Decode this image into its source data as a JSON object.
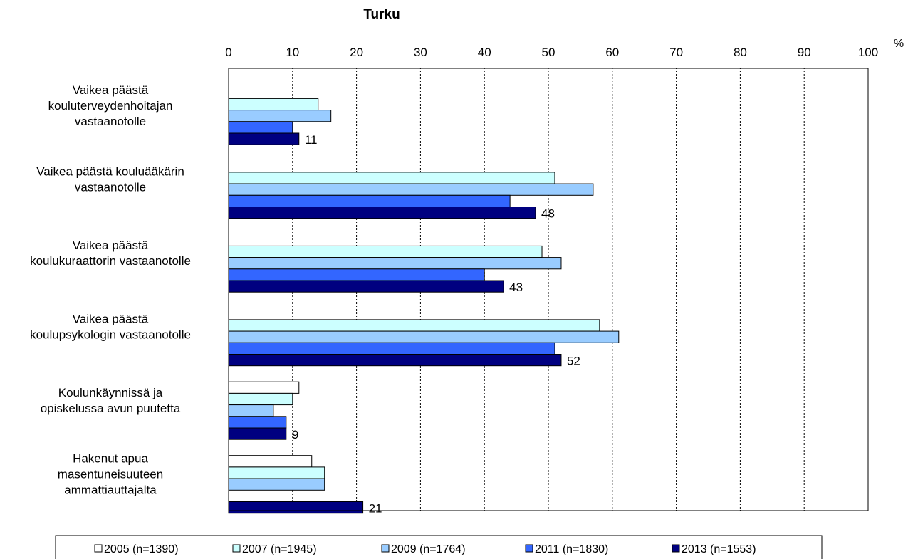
{
  "chart_data": {
    "type": "bar",
    "orientation": "horizontal",
    "title": "Turku",
    "unit_label": "%",
    "xlim": [
      0,
      100
    ],
    "ticks": [
      0,
      10,
      20,
      30,
      40,
      50,
      60,
      70,
      80,
      90,
      100
    ],
    "grid": true,
    "legend_position": "bottom",
    "categories": [
      [
        "Vaikea päästä",
        "kouluterveydenhoitajan",
        "vastaanotolle"
      ],
      [
        "Vaikea päästä kouluääkärin",
        "vastaanotolle"
      ],
      [
        "Vaikea päästä",
        "koulukuraattorin vastaanotolle"
      ],
      [
        "Vaikea päästä",
        "koulupsykologin vastaanotolle"
      ],
      [
        "Koulunkäynnissä ja",
        "opiskelussa avun puutetta"
      ],
      [
        "Hakenut apua",
        "masentuneisuuteen",
        "ammattiauttajalta"
      ]
    ],
    "series": [
      {
        "name": "2005 (n=1390)",
        "color": "#ffffff",
        "values": [
          null,
          null,
          null,
          null,
          11,
          13
        ]
      },
      {
        "name": "2007 (n=1945)",
        "color": "#ccffff",
        "values": [
          14,
          51,
          49,
          58,
          10,
          15
        ]
      },
      {
        "name": "2009 (n=1764)",
        "color": "#99ccff",
        "values": [
          16,
          57,
          52,
          61,
          7,
          15
        ]
      },
      {
        "name": "2011 (n=1830)",
        "color": "#3366ff",
        "values": [
          10,
          44,
          40,
          51,
          9,
          null
        ]
      },
      {
        "name": "2013 (n=1553)",
        "color": "#000080",
        "values": [
          11,
          48,
          43,
          52,
          9,
          21
        ]
      }
    ],
    "data_labels": [
      "11",
      "48",
      "43",
      "52",
      "9",
      "21"
    ]
  }
}
